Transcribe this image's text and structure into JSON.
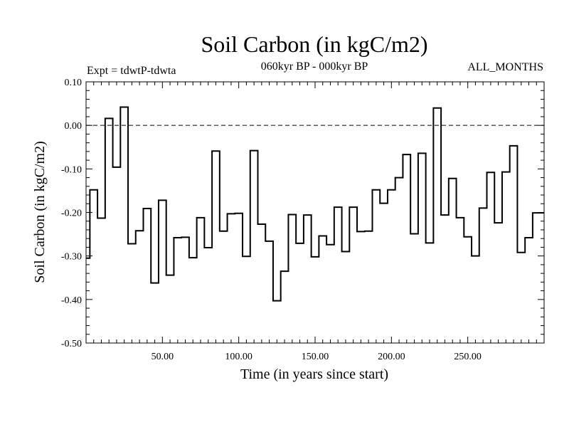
{
  "chart_data": {
    "type": "line",
    "step": true,
    "title": "Soil Carbon (in kgC/m2)",
    "subtitle": "060kyr BP - 000kyr BP",
    "left_label": "Expt = tdwtP-tdwta",
    "right_label": "ALL_MONTHS",
    "xlabel": "Time (in years since start)",
    "ylabel": "Soil Carbon (in kgC/m2)",
    "xlim": [
      0,
      300
    ],
    "ylim": [
      -0.5,
      0.1
    ],
    "x_ticks": [
      50,
      100,
      150,
      200,
      250
    ],
    "x_tick_labels": [
      "50.00",
      "100.00",
      "150.00",
      "200.00",
      "250.00"
    ],
    "y_ticks": [
      -0.5,
      -0.4,
      -0.3,
      -0.2,
      -0.1,
      0.0,
      0.1
    ],
    "y_tick_labels": [
      "-0.50",
      "-0.40",
      "-0.30",
      "-0.20",
      "-0.10",
      "0.00",
      "0.10"
    ],
    "reference_line": 0.0,
    "x": [
      0,
      5,
      10,
      15,
      20,
      25,
      30,
      35,
      40,
      45,
      50,
      55,
      60,
      65,
      70,
      75,
      80,
      85,
      90,
      95,
      100,
      105,
      110,
      115,
      120,
      125,
      130,
      135,
      140,
      145,
      150,
      155,
      160,
      165,
      170,
      175,
      180,
      185,
      190,
      195,
      200,
      205,
      210,
      215,
      220,
      225,
      230,
      235,
      240,
      245,
      250,
      255,
      260,
      265,
      270,
      275,
      280,
      285,
      290,
      295,
      300
    ],
    "values": [
      -0.305,
      -0.148,
      -0.213,
      0.016,
      -0.096,
      0.042,
      -0.272,
      -0.242,
      -0.191,
      -0.362,
      -0.172,
      -0.344,
      -0.258,
      -0.257,
      -0.304,
      -0.212,
      -0.281,
      -0.059,
      -0.243,
      -0.203,
      -0.202,
      -0.301,
      -0.058,
      -0.227,
      -0.266,
      -0.403,
      -0.335,
      -0.205,
      -0.271,
      -0.206,
      -0.302,
      -0.254,
      -0.274,
      -0.188,
      -0.29,
      -0.188,
      -0.244,
      -0.243,
      -0.148,
      -0.179,
      -0.148,
      -0.12,
      -0.067,
      -0.249,
      -0.064,
      -0.27,
      0.04,
      -0.206,
      -0.122,
      -0.212,
      -0.256,
      -0.3,
      -0.19,
      -0.108,
      -0.224,
      -0.107,
      -0.047,
      -0.292,
      -0.258,
      -0.201,
      -0.201
    ]
  }
}
